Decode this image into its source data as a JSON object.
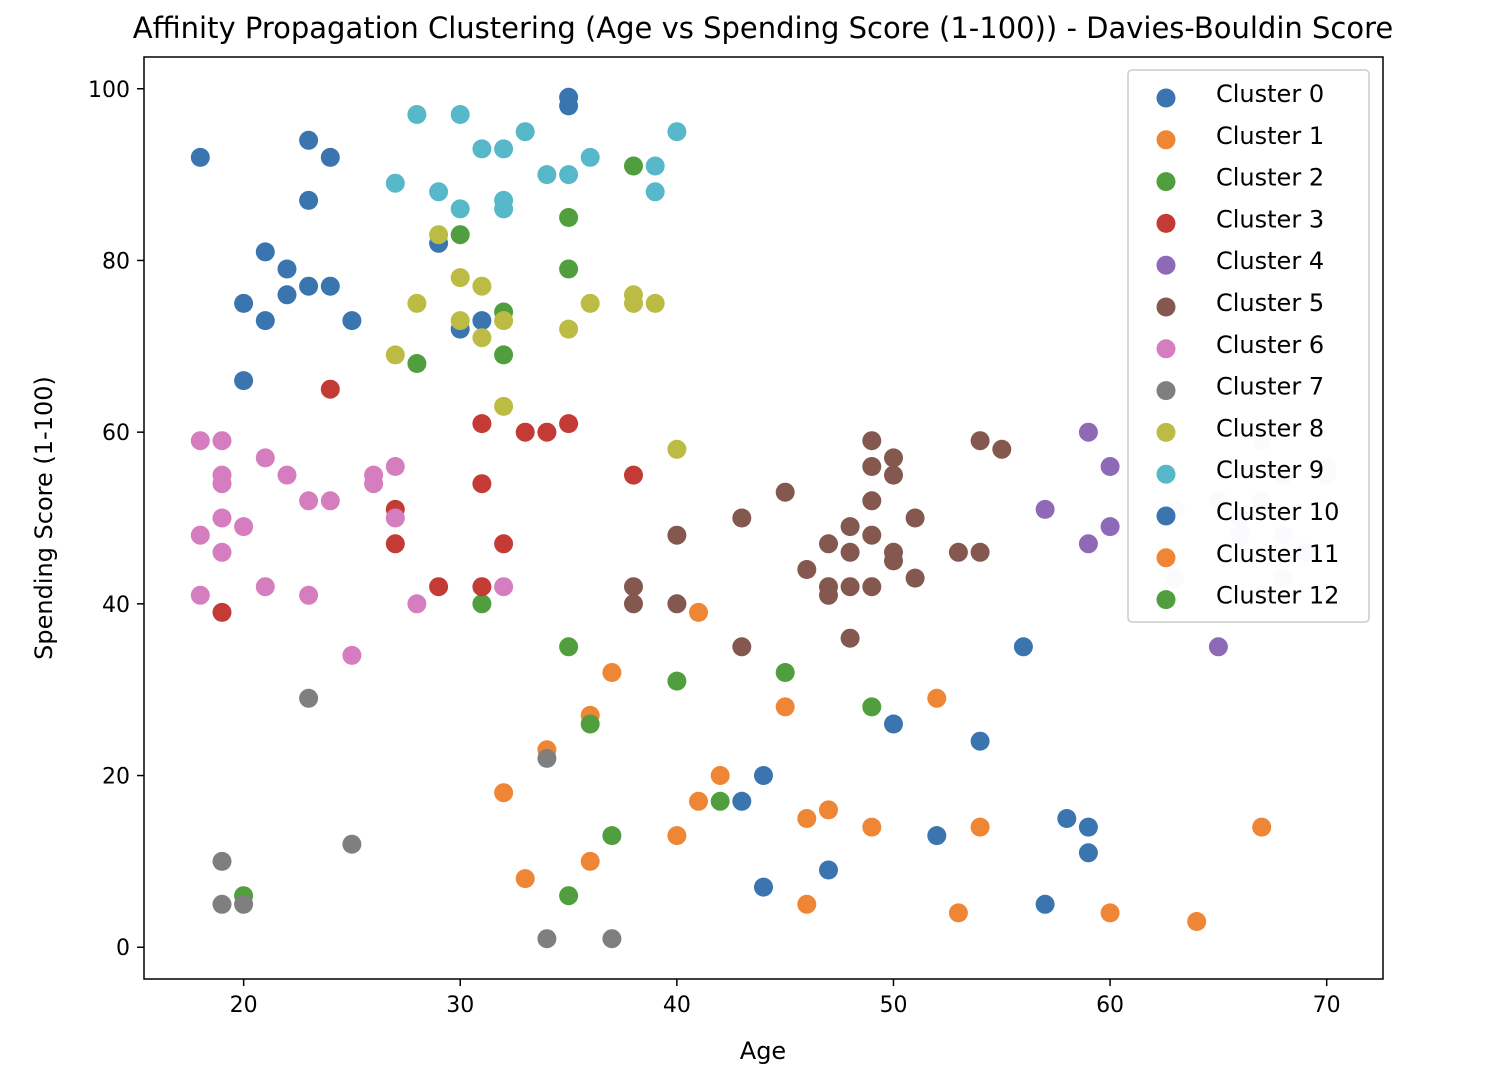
{
  "chart_data": {
    "type": "scatter",
    "title": "Affinity Propagation Clustering (Age vs Spending Score (1-100)) - Davies-Bouldin Score",
    "xlabel": "Age",
    "ylabel": "Spending Score (1-100)",
    "xlim": [
      15.4,
      72.6
    ],
    "ylim": [
      -3.7,
      103.7
    ],
    "xticks": [
      20,
      30,
      40,
      50,
      60,
      70
    ],
    "yticks": [
      0,
      20,
      40,
      60,
      80,
      100
    ],
    "grid": false,
    "legend_position": "top-right",
    "series": [
      {
        "name": "Cluster 0",
        "color": "#3a75b0",
        "points": [
          [
            18,
            92
          ],
          [
            23,
            94
          ],
          [
            24,
            92
          ],
          [
            23,
            87
          ],
          [
            21,
            81
          ],
          [
            22,
            79
          ],
          [
            23,
            77
          ],
          [
            24,
            77
          ],
          [
            22,
            76
          ],
          [
            20,
            75
          ],
          [
            21,
            73
          ],
          [
            25,
            73
          ],
          [
            20,
            66
          ],
          [
            29,
            82
          ],
          [
            30,
            72
          ],
          [
            31,
            73
          ],
          [
            35,
            98
          ],
          [
            35,
            99
          ]
        ]
      },
      {
        "name": "Cluster 1",
        "color": "#ef8636",
        "points": [
          [
            41,
            39
          ],
          [
            37,
            32
          ],
          [
            36,
            27
          ],
          [
            34,
            23
          ],
          [
            32,
            18
          ],
          [
            33,
            8
          ],
          [
            36,
            10
          ],
          [
            40,
            13
          ],
          [
            41,
            17
          ],
          [
            42,
            20
          ],
          [
            45,
            28
          ],
          [
            46,
            15
          ],
          [
            47,
            16
          ],
          [
            46,
            5
          ],
          [
            49,
            14
          ],
          [
            52,
            29
          ],
          [
            53,
            4
          ],
          [
            54,
            14
          ],
          [
            60,
            4
          ],
          [
            64,
            3
          ],
          [
            67,
            14
          ]
        ]
      },
      {
        "name": "Cluster 2",
        "color": "#519e3e",
        "points": [
          [
            38,
            91
          ],
          [
            35,
            85
          ],
          [
            30,
            83
          ],
          [
            35,
            79
          ],
          [
            32,
            74
          ],
          [
            28,
            68
          ],
          [
            32,
            69
          ],
          [
            31,
            40
          ],
          [
            35,
            35
          ],
          [
            36,
            26
          ],
          [
            40,
            31
          ],
          [
            45,
            32
          ],
          [
            49,
            28
          ],
          [
            42,
            17
          ],
          [
            37,
            13
          ],
          [
            35,
            6
          ],
          [
            20,
            6
          ]
        ]
      },
      {
        "name": "Cluster 3",
        "color": "#c43b35",
        "points": [
          [
            24,
            65
          ],
          [
            31,
            61
          ],
          [
            33,
            60
          ],
          [
            34,
            60
          ],
          [
            35,
            61
          ],
          [
            31,
            54
          ],
          [
            38,
            55
          ],
          [
            27,
            51
          ],
          [
            27,
            47
          ],
          [
            32,
            47
          ],
          [
            29,
            42
          ],
          [
            31,
            42
          ],
          [
            19,
            39
          ]
        ]
      },
      {
        "name": "Cluster 4",
        "color": "#8d69b8",
        "points": [
          [
            59,
            60
          ],
          [
            60,
            56
          ],
          [
            57,
            51
          ],
          [
            59,
            47
          ],
          [
            60,
            49
          ],
          [
            65,
            35
          ]
        ]
      },
      {
        "name": "Cluster 5",
        "color": "#84584e",
        "points": [
          [
            49,
            59
          ],
          [
            54,
            59
          ],
          [
            55,
            58
          ],
          [
            49,
            56
          ],
          [
            50,
            57
          ],
          [
            50,
            55
          ],
          [
            45,
            53
          ],
          [
            49,
            52
          ],
          [
            43,
            50
          ],
          [
            51,
            50
          ],
          [
            40,
            48
          ],
          [
            49,
            48
          ],
          [
            48,
            49
          ],
          [
            47,
            47
          ],
          [
            50,
            46
          ],
          [
            48,
            46
          ],
          [
            53,
            46
          ],
          [
            54,
            46
          ],
          [
            50,
            45
          ],
          [
            46,
            44
          ],
          [
            51,
            43
          ],
          [
            38,
            42
          ],
          [
            47,
            42
          ],
          [
            48,
            42
          ],
          [
            49,
            42
          ],
          [
            47,
            41
          ],
          [
            38,
            40
          ],
          [
            40,
            40
          ],
          [
            48,
            36
          ],
          [
            43,
            35
          ]
        ]
      },
      {
        "name": "Cluster 6",
        "color": "#d57dbf",
        "points": [
          [
            18,
            59
          ],
          [
            19,
            59
          ],
          [
            21,
            57
          ],
          [
            19,
            55
          ],
          [
            22,
            55
          ],
          [
            26,
            55
          ],
          [
            27,
            56
          ],
          [
            19,
            54
          ],
          [
            26,
            54
          ],
          [
            23,
            52
          ],
          [
            24,
            52
          ],
          [
            19,
            50
          ],
          [
            27,
            50
          ],
          [
            20,
            49
          ],
          [
            18,
            48
          ],
          [
            19,
            46
          ],
          [
            21,
            42
          ],
          [
            32,
            42
          ],
          [
            18,
            41
          ],
          [
            23,
            41
          ],
          [
            28,
            40
          ],
          [
            25,
            34
          ]
        ]
      },
      {
        "name": "Cluster 7",
        "color": "#7f7f7f",
        "points": [
          [
            23,
            29
          ],
          [
            34,
            22
          ],
          [
            25,
            12
          ],
          [
            19,
            10
          ],
          [
            19,
            5
          ],
          [
            20,
            5
          ],
          [
            34,
            1
          ],
          [
            37,
            1
          ]
        ]
      },
      {
        "name": "Cluster 8",
        "color": "#bcbc45",
        "points": [
          [
            29,
            83
          ],
          [
            30,
            78
          ],
          [
            31,
            77
          ],
          [
            38,
            76
          ],
          [
            28,
            75
          ],
          [
            36,
            75
          ],
          [
            38,
            75
          ],
          [
            39,
            75
          ],
          [
            30,
            73
          ],
          [
            32,
            73
          ],
          [
            35,
            72
          ],
          [
            31,
            71
          ],
          [
            27,
            69
          ],
          [
            32,
            63
          ],
          [
            40,
            58
          ]
        ]
      },
      {
        "name": "Cluster 9",
        "color": "#56b8c8",
        "points": [
          [
            28,
            97
          ],
          [
            30,
            97
          ],
          [
            33,
            95
          ],
          [
            40,
            95
          ],
          [
            31,
            93
          ],
          [
            32,
            93
          ],
          [
            36,
            92
          ],
          [
            39,
            91
          ],
          [
            34,
            90
          ],
          [
            35,
            90
          ],
          [
            27,
            89
          ],
          [
            29,
            88
          ],
          [
            39,
            88
          ],
          [
            32,
            87
          ],
          [
            30,
            86
          ],
          [
            32,
            86
          ]
        ]
      },
      {
        "name": "Cluster 10",
        "color": "#3a75b0",
        "points": [
          [
            56,
            35
          ],
          [
            50,
            26
          ],
          [
            54,
            24
          ],
          [
            44,
            20
          ],
          [
            43,
            17
          ],
          [
            58,
            15
          ],
          [
            59,
            14
          ],
          [
            52,
            13
          ],
          [
            59,
            11
          ],
          [
            47,
            9
          ],
          [
            44,
            7
          ],
          [
            57,
            5
          ]
        ]
      },
      {
        "name": "Cluster 11",
        "color": "#ef8636",
        "points": []
      },
      {
        "name": "Cluster 12",
        "color": "#519e3e",
        "points": []
      },
      {
        "name": "",
        "color": "#e4dcec",
        "points": [
          [
            67,
            59
          ],
          [
            68,
            55
          ],
          [
            70,
            55
          ],
          [
            70,
            56
          ],
          [
            63,
            51
          ],
          [
            65,
            52
          ],
          [
            67,
            52
          ],
          [
            66,
            50
          ],
          [
            66,
            48
          ],
          [
            68,
            48
          ],
          [
            69,
            46
          ],
          [
            63,
            43
          ],
          [
            68,
            43
          ],
          [
            67,
            41
          ]
        ]
      }
    ]
  }
}
